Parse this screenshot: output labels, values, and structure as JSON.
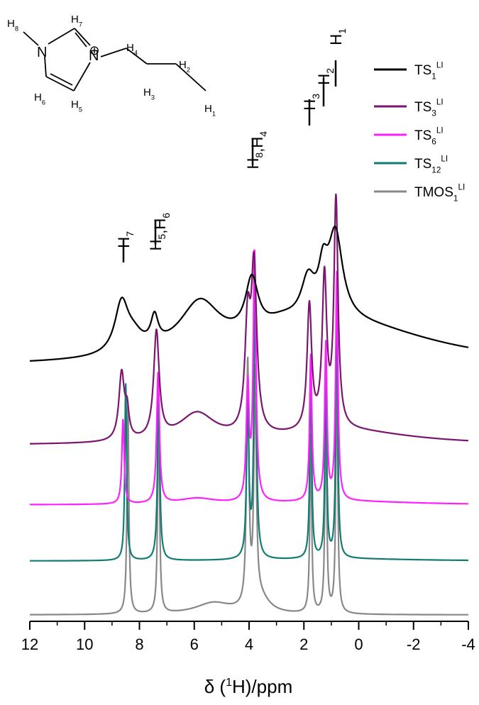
{
  "chart_data": {
    "type": "line",
    "xlabel": "δ (¹H)/ppm",
    "xlim": [
      12,
      -4
    ],
    "x_reversed": true,
    "x_ticks": [
      "12",
      "10",
      "8",
      "6",
      "4",
      "2",
      "0",
      "-2",
      "-4"
    ],
    "x_tick_values": [
      12,
      10,
      8,
      6,
      4,
      2,
      0,
      -2,
      -4
    ],
    "yaxis_shown": false,
    "series": [
      {
        "name_base": "TS",
        "name_sub": "1",
        "name_sup": "LI",
        "color": "#000000"
      },
      {
        "name_base": "TS",
        "name_sub": "3",
        "name_sup": "LI",
        "color": "#7a1670"
      },
      {
        "name_base": "TS",
        "name_sub": "6",
        "name_sup": "LI",
        "color": "#ff20ff"
      },
      {
        "name_base": "TS",
        "name_sub": "12",
        "name_sup": "LI",
        "color": "#127c74"
      },
      {
        "name_base": "TMOS",
        "name_sub": "1",
        "name_sup": "LI",
        "color": "#888888"
      }
    ],
    "peaks_ppm": [
      8.6,
      7.4,
      3.9,
      1.8,
      1.3,
      0.85
    ],
    "peak_labels": [
      {
        "text": "H7",
        "ppm": 8.6
      },
      {
        "text": "H5,H6",
        "ppm": 7.4
      },
      {
        "text": "H8,H4",
        "ppm": 3.9
      },
      {
        "text": "H3",
        "ppm": 1.8
      },
      {
        "text": "H2",
        "ppm": 1.35
      },
      {
        "text": "H1",
        "ppm": 0.85
      }
    ],
    "legend_position": "top-right"
  },
  "molecule": {
    "atoms": [
      "N",
      "N",
      "⊕"
    ],
    "h_labels": [
      {
        "base": "H",
        "sub": "8"
      },
      {
        "base": "H",
        "sub": "7"
      },
      {
        "base": "H",
        "sub": "6"
      },
      {
        "base": "H",
        "sub": "5"
      },
      {
        "base": "H",
        "sub": "4"
      },
      {
        "base": "H",
        "sub": "2"
      },
      {
        "base": "H",
        "sub": "3"
      },
      {
        "base": "H",
        "sub": "1"
      }
    ]
  }
}
